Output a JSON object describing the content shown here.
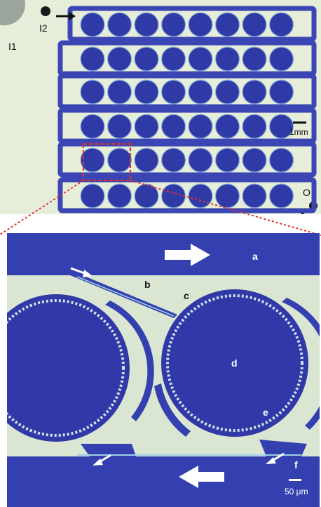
{
  "top_panel": {
    "inlet_1": "I1",
    "inlet_2": "I2",
    "outlet": "O",
    "scale_bar": "1mm",
    "rows": 6,
    "chambers_per_row": 8
  },
  "bottom_panel": {
    "label_a": "a",
    "label_b": "b",
    "label_c": "c",
    "label_d": "d",
    "label_e": "e",
    "label_f": "f",
    "scale_bar": "50 μm"
  },
  "colors": {
    "channel_blue": "#3b46b4",
    "chamber_blue": "#2f3aa6",
    "background": "#dfe9d0",
    "zoom_box": "#e0302a",
    "arrow_dark": "#111111",
    "arrow_light": "#ffffff"
  }
}
